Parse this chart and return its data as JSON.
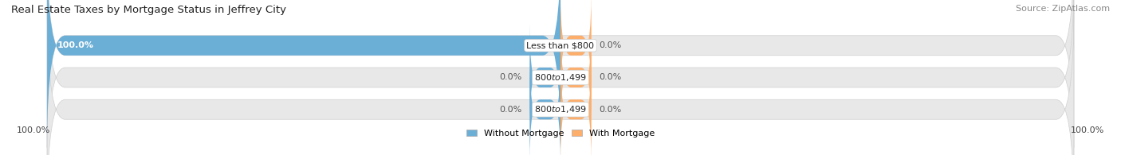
{
  "title": "Real Estate Taxes by Mortgage Status in Jeffrey City",
  "source": "Source: ZipAtlas.com",
  "bars": [
    {
      "label": "Less than $800",
      "without_mortgage": 100.0,
      "with_mortgage": 0.0
    },
    {
      "label": "$800 to $1,499",
      "without_mortgage": 0.0,
      "with_mortgage": 0.0
    },
    {
      "label": "$800 to $1,499",
      "without_mortgage": 0.0,
      "with_mortgage": 0.0
    }
  ],
  "color_without": "#6baed6",
  "color_with": "#fdae6b",
  "bar_bg_color": "#e8e8e8",
  "bar_border_color": "#d0d0d0",
  "title_fontsize": 9.5,
  "source_fontsize": 8,
  "label_fontsize": 8,
  "value_fontsize": 8,
  "legend_fontsize": 8,
  "figsize": [
    14.06,
    1.95
  ],
  "dpi": 100,
  "left_axis_label": "100.0%",
  "right_axis_label": "100.0%"
}
